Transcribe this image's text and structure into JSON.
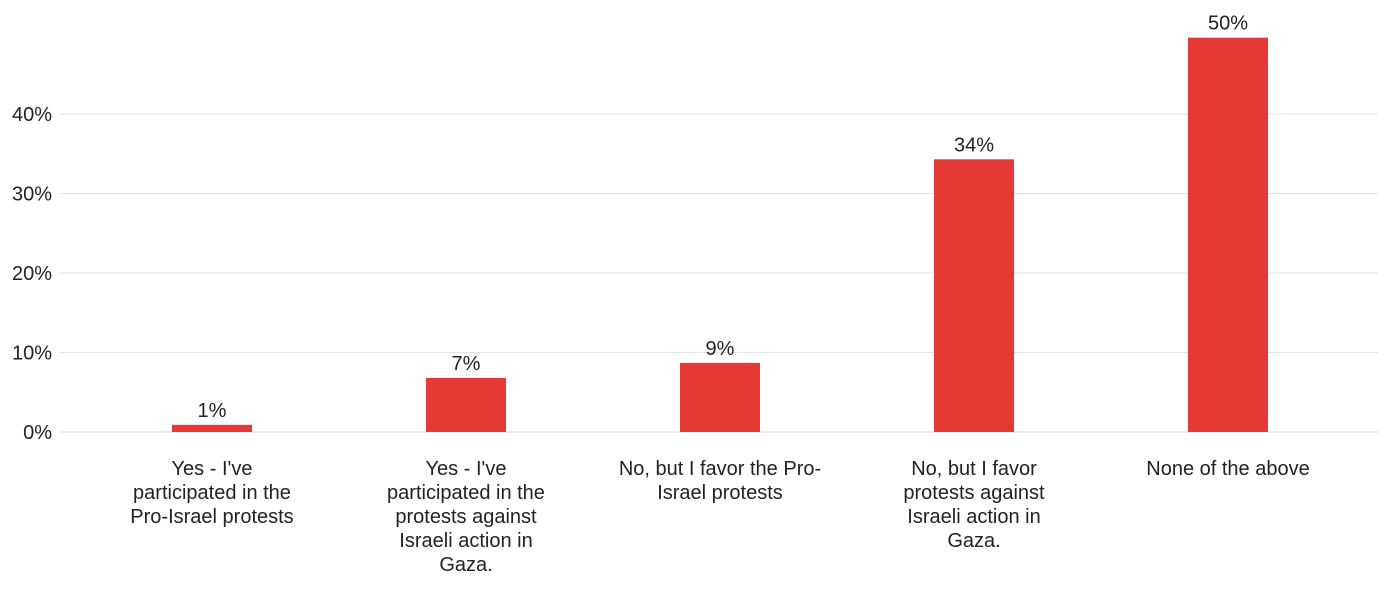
{
  "chart_data": {
    "type": "bar",
    "categories": [
      "Yes - I've participated in the Pro-Israel protests",
      "Yes - I've participated in the protests against Israeli action in Gaza.",
      "No, but I favor the Pro-Israel protests",
      "No, but I favor protests against Israeli action in Gaza.",
      "None of the above"
    ],
    "values": [
      1,
      7,
      9,
      34,
      50
    ],
    "bar_value_estimates": [
      0.9,
      6.8,
      8.7,
      34.3,
      49.6
    ],
    "data_labels": [
      "1%",
      "7%",
      "9%",
      "34%",
      "50%"
    ],
    "y_ticks": [
      0,
      10,
      20,
      30,
      40
    ],
    "y_tick_labels": [
      "0%",
      "10%",
      "20%",
      "30%",
      "40%"
    ],
    "ylim": [
      0,
      50
    ],
    "grid": true,
    "bar_color": "#e53935",
    "title": "",
    "xlabel": "",
    "ylabel": ""
  }
}
